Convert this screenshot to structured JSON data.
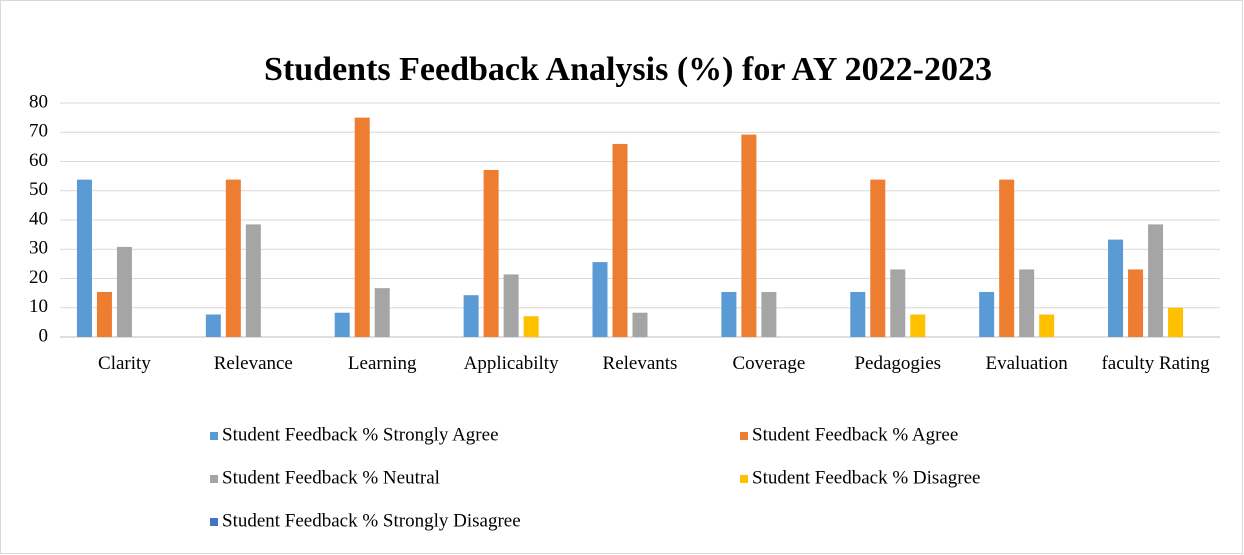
{
  "chart_data": {
    "type": "bar",
    "title": "Students Feedback Analysis (%) for AY 2022-2023",
    "categories": [
      "Clarity",
      "Relevance",
      "Learning",
      "Applicabilty",
      "Relevants",
      "Coverage",
      "Pedagogies",
      "Evaluation",
      "faculty Rating"
    ],
    "series": [
      {
        "name": "Student Feedback % Strongly Agree",
        "color": "#5b9bd5",
        "values": [
          53.8,
          7.7,
          8.3,
          14.3,
          25.6,
          15.4,
          15.4,
          15.4,
          33.3
        ]
      },
      {
        "name": "Student Feedback % Agree",
        "color": "#ed7d31",
        "values": [
          15.4,
          53.8,
          75,
          57.1,
          66,
          69.2,
          53.8,
          53.8,
          23.1
        ]
      },
      {
        "name": "Student Feedback % Neutral",
        "color": "#a5a5a5",
        "values": [
          30.8,
          38.5,
          16.7,
          21.4,
          8.3,
          15.4,
          23.1,
          23.1,
          38.5
        ]
      },
      {
        "name": "Student Feedback % Disagree",
        "color": "#ffc000",
        "values": [
          0,
          0,
          0,
          7.1,
          0,
          0,
          7.7,
          7.7,
          10
        ]
      },
      {
        "name": "Student Feedback % Strongly Disagree",
        "color": "#4472c4",
        "values": [
          0,
          0,
          0,
          0,
          0,
          0,
          0,
          0,
          0
        ]
      }
    ],
    "ylim": [
      0,
      80
    ],
    "yticks": [
      0,
      10,
      20,
      30,
      40,
      50,
      60,
      70,
      80
    ],
    "grid": true,
    "legend": "bottom"
  }
}
